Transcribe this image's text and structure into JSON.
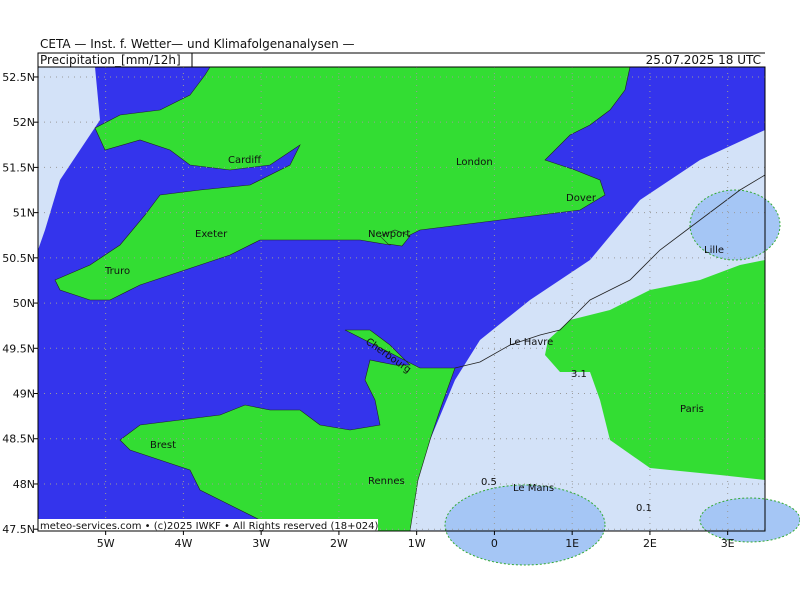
{
  "header": {
    "source": "CETA — Inst. f. Wetter— und Klimafolgenanalysen —",
    "product": "Precipitation_[mm/12h]",
    "valid": "25.07.2025 18 UTC"
  },
  "footer": "meteo-services.com • (c)2025 IWKF • All Rights reserved (18+024)",
  "map": {
    "xlim": [
      -5.87,
      3.48
    ],
    "ylim": [
      47.48,
      52.61
    ],
    "xticks": [
      {
        "value": -5,
        "label": "5W"
      },
      {
        "value": -4,
        "label": "4W"
      },
      {
        "value": -3,
        "label": "3W"
      },
      {
        "value": -2,
        "label": "2W"
      },
      {
        "value": -1,
        "label": "1W"
      },
      {
        "value": 0,
        "label": "0"
      },
      {
        "value": 1,
        "label": "1E"
      },
      {
        "value": 2,
        "label": "2E"
      },
      {
        "value": 3,
        "label": "3E"
      }
    ],
    "yticks": [
      {
        "value": 47.5,
        "label": "47.5N"
      },
      {
        "value": 48,
        "label": "48N"
      },
      {
        "value": 48.5,
        "label": "48.5N"
      },
      {
        "value": 49,
        "label": "49N"
      },
      {
        "value": 49.5,
        "label": "49.5N"
      },
      {
        "value": 50,
        "label": "50N"
      },
      {
        "value": 50.5,
        "label": "50.5N"
      },
      {
        "value": 51,
        "label": "51N"
      },
      {
        "value": 51.5,
        "label": "51.5N"
      },
      {
        "value": 52,
        "label": "52N"
      },
      {
        "value": 52.5,
        "label": "52.5N"
      }
    ],
    "cities": [
      "Cardiff",
      "London",
      "Dover",
      "Exeter",
      "Newport",
      "Truro",
      "Lille",
      "Le Havre",
      "Cherbourg",
      "Brest",
      "Rennes",
      "Le Mans",
      "Paris"
    ],
    "contour_labels": [
      "3.1",
      "0.5",
      "0.1"
    ]
  }
}
